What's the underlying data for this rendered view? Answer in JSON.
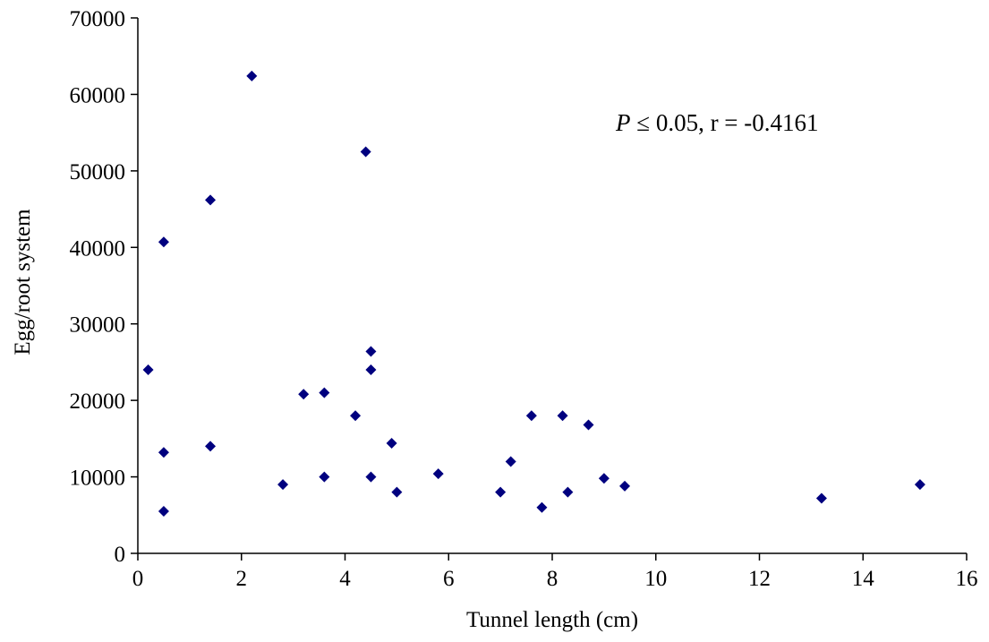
{
  "chart_data": {
    "type": "scatter",
    "xlabel": "Tunnel length (cm)",
    "ylabel": "Egg/root system",
    "xlim": [
      0,
      16
    ],
    "ylim": [
      0,
      70000
    ],
    "xticks": [
      0,
      2,
      4,
      6,
      8,
      10,
      12,
      14,
      16
    ],
    "yticks": [
      0,
      10000,
      20000,
      30000,
      40000,
      50000,
      60000,
      70000
    ],
    "grid": false,
    "legend": "none",
    "marker": "diamond",
    "marker_color": "#00007f",
    "annotation": {
      "italic": "P",
      "rest": " ≤ 0.05, r = -0.4161"
    },
    "points": [
      {
        "x": 0.2,
        "y": 24000
      },
      {
        "x": 0.5,
        "y": 40700
      },
      {
        "x": 0.5,
        "y": 13200
      },
      {
        "x": 0.5,
        "y": 5500
      },
      {
        "x": 1.4,
        "y": 46200
      },
      {
        "x": 1.4,
        "y": 14000
      },
      {
        "x": 2.2,
        "y": 62400
      },
      {
        "x": 2.8,
        "y": 9000
      },
      {
        "x": 3.2,
        "y": 20800
      },
      {
        "x": 3.6,
        "y": 21000
      },
      {
        "x": 3.6,
        "y": 10000
      },
      {
        "x": 4.2,
        "y": 18000
      },
      {
        "x": 4.4,
        "y": 52500
      },
      {
        "x": 4.5,
        "y": 26400
      },
      {
        "x": 4.5,
        "y": 24000
      },
      {
        "x": 4.5,
        "y": 10000
      },
      {
        "x": 4.9,
        "y": 14400
      },
      {
        "x": 5.0,
        "y": 8000
      },
      {
        "x": 5.8,
        "y": 10400
      },
      {
        "x": 7.0,
        "y": 8000
      },
      {
        "x": 7.2,
        "y": 12000
      },
      {
        "x": 7.6,
        "y": 18000
      },
      {
        "x": 7.8,
        "y": 6000
      },
      {
        "x": 8.2,
        "y": 18000
      },
      {
        "x": 8.3,
        "y": 8000
      },
      {
        "x": 8.7,
        "y": 16800
      },
      {
        "x": 9.0,
        "y": 9800
      },
      {
        "x": 9.4,
        "y": 8800
      },
      {
        "x": 13.2,
        "y": 7200
      },
      {
        "x": 15.1,
        "y": 9000
      }
    ]
  }
}
